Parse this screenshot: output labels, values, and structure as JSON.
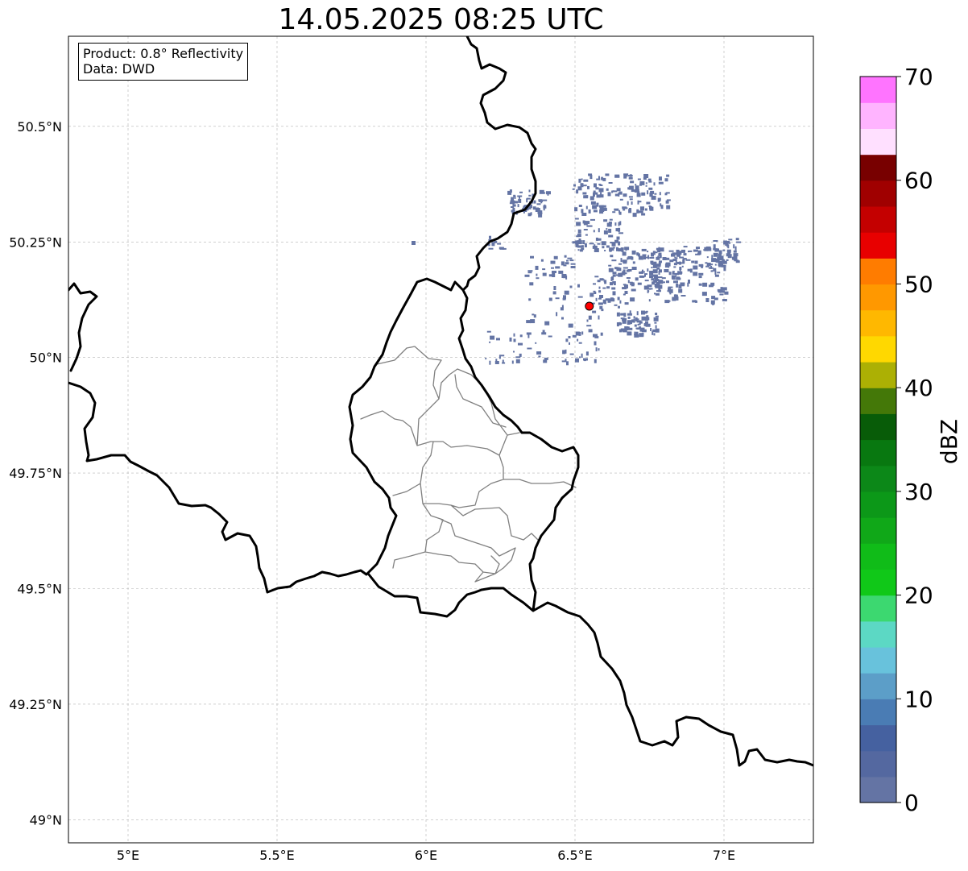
{
  "title": "14.05.2025 08:25 UTC",
  "info": {
    "product": "Product: 0.8° Reflectivity",
    "data": "Data: DWD"
  },
  "map": {
    "lon_range": [
      4.8,
      7.3
    ],
    "lat_range": [
      48.95,
      50.695
    ],
    "lon_ticks": [
      {
        "value": 5.0,
        "label": "5°E"
      },
      {
        "value": 5.5,
        "label": "5.5°E"
      },
      {
        "value": 6.0,
        "label": "6°E"
      },
      {
        "value": 6.5,
        "label": "6.5°E"
      },
      {
        "value": 7.0,
        "label": "7°E"
      }
    ],
    "lat_ticks": [
      {
        "value": 49.0,
        "label": "49°N"
      },
      {
        "value": 49.25,
        "label": "49.25°N"
      },
      {
        "value": 49.5,
        "label": "49.5°N"
      },
      {
        "value": 49.75,
        "label": "49.75°N"
      },
      {
        "value": 50.0,
        "label": "50°N"
      },
      {
        "value": 50.25,
        "label": "50.25°N"
      },
      {
        "value": 50.5,
        "label": "50.5°N"
      }
    ],
    "gridlines": true,
    "radar_site": {
      "lon": 6.548,
      "lat": 50.111,
      "color": "#ff0000"
    },
    "echo_color": "#6474a4"
  },
  "colorbar": {
    "label": "dBZ",
    "min": 0,
    "max": 70,
    "step": 2.5,
    "tick_values": [
      0,
      10,
      20,
      30,
      40,
      50,
      60,
      70
    ],
    "tick_labels": [
      "0",
      "10",
      "20",
      "30",
      "40",
      "50",
      "60",
      "70"
    ],
    "colors": [
      "#6474a4",
      "#5468a0",
      "#4561a0",
      "#4a7cb4",
      "#5c9ec8",
      "#68c2dc",
      "#5cd8c4",
      "#3cd870",
      "#10c818",
      "#10bc18",
      "#10a818",
      "#0c9818",
      "#0c8818",
      "#087810",
      "#085c08",
      "#447808",
      "#acb004",
      "#ffd800",
      "#ffb800",
      "#ff9800",
      "#ff7c00",
      "#e80000",
      "#c40000",
      "#a00000",
      "#780000",
      "#ffe0ff",
      "#ffb4ff",
      "#ff74ff",
      "#f038f0"
    ]
  }
}
